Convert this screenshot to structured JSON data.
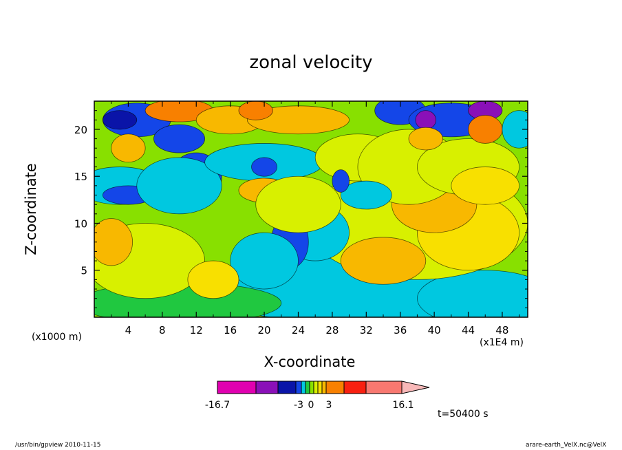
{
  "chart_data": {
    "type": "heatmap",
    "title": "zonal velocity",
    "xlabel": "X-coordinate",
    "ylabel": "Z-coordinate",
    "x_unit_left": "(x1000 m)",
    "x_unit_right": "(x1E4 m)",
    "xlim": [
      0,
      51
    ],
    "ylim": [
      0,
      23
    ],
    "x_ticks": [
      4,
      8,
      12,
      16,
      20,
      24,
      28,
      32,
      36,
      40,
      44,
      48
    ],
    "y_ticks": [
      5,
      10,
      15,
      20
    ],
    "colorbar": {
      "colors": [
        "#e000b0",
        "#8a10b8",
        "#0a14a8",
        "#1446e8",
        "#00c8e0",
        "#20c840",
        "#88e000",
        "#d8f000",
        "#f8e000",
        "#f8b800",
        "#f88000",
        "#f82010",
        "#f87870",
        "#f8b8b8"
      ],
      "tick_labels": [
        "-16.7",
        "-3",
        "0",
        "3",
        "16.1"
      ],
      "min": -16.7,
      "max": 16.1
    },
    "time_text": "t=50400 s",
    "footer_left": "/usr/bin/gpview   2010-11-15",
    "footer_right": "arare-earth_VelX.nc@VelX"
  }
}
